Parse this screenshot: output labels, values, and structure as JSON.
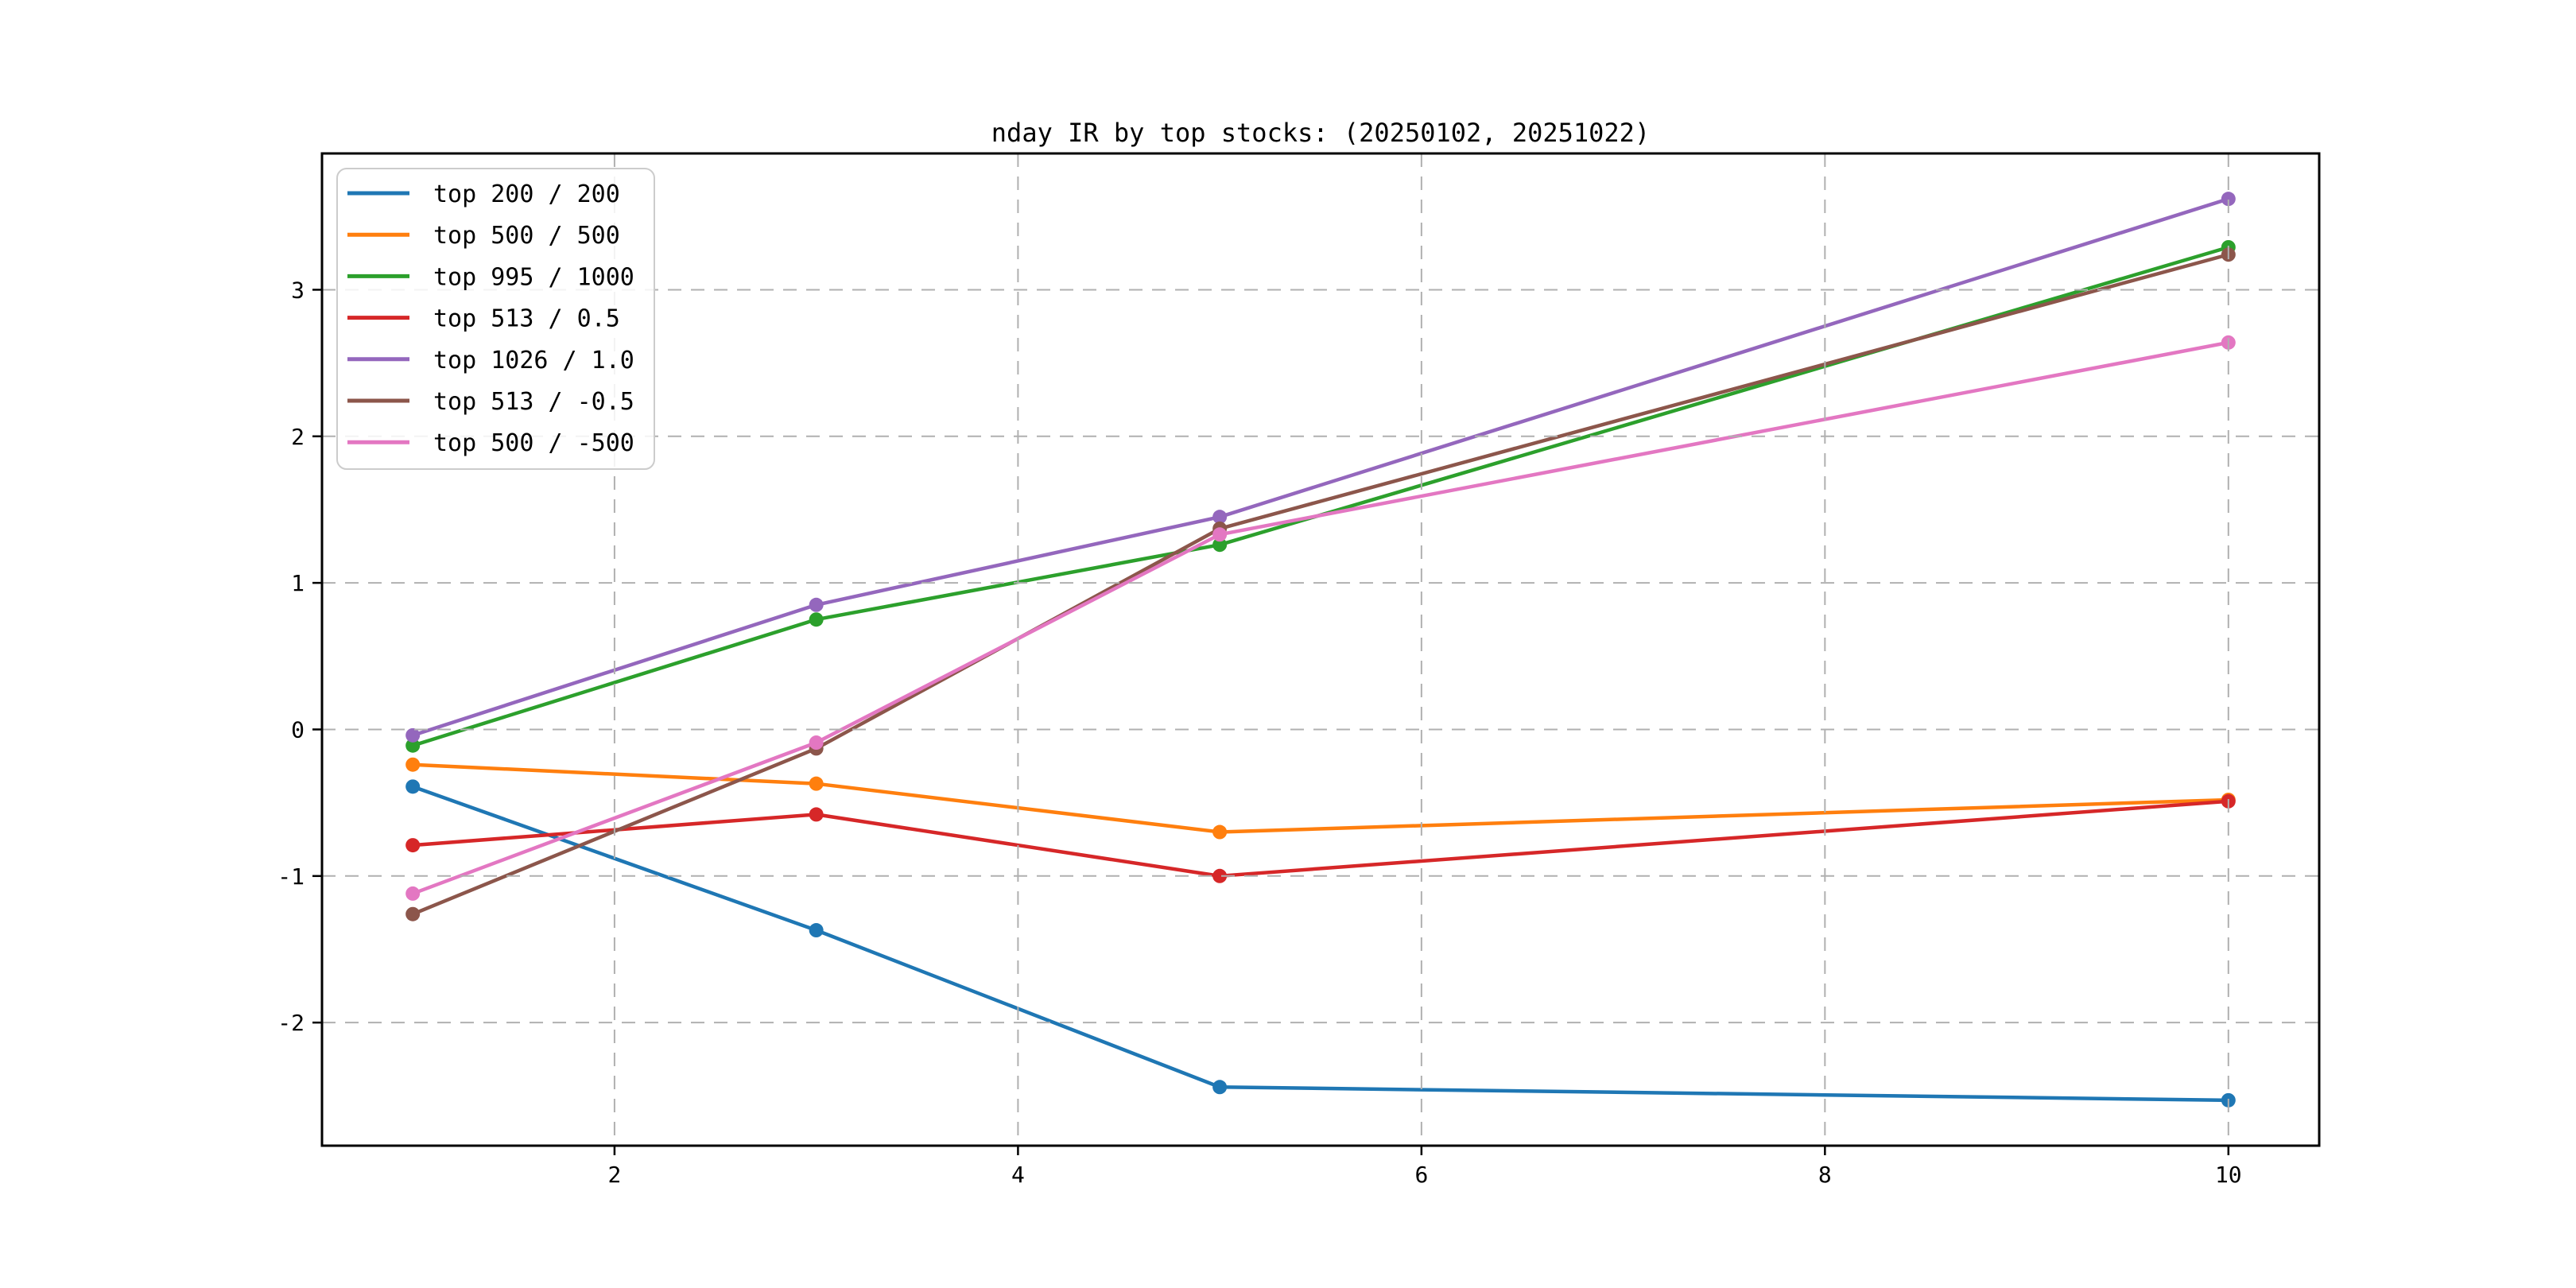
{
  "figure": {
    "background": "#ffffff"
  },
  "chart_data": {
    "type": "line",
    "title": "nday IR by top stocks: (20250102, 20251022)",
    "xlabel": "",
    "ylabel": "",
    "x": [
      1,
      3,
      5,
      10
    ],
    "series": [
      {
        "name": "top 200 / 200",
        "color": "#1f77b4",
        "values": [
          -0.39,
          -1.37,
          -2.44,
          -2.53
        ]
      },
      {
        "name": "top 500 / 500",
        "color": "#ff7f0e",
        "values": [
          -0.24,
          -0.37,
          -0.7,
          -0.48
        ]
      },
      {
        "name": "top 995 / 1000",
        "color": "#2ca02c",
        "values": [
          -0.11,
          0.75,
          1.26,
          3.29
        ]
      },
      {
        "name": "top 513 / 0.5",
        "color": "#d62728",
        "values": [
          -0.79,
          -0.58,
          -1.0,
          -0.49
        ]
      },
      {
        "name": "top 1026 / 1.0",
        "color": "#9467bd",
        "values": [
          -0.04,
          0.85,
          1.45,
          3.62
        ]
      },
      {
        "name": "top 513 / -0.5",
        "color": "#8c564b",
        "values": [
          -1.26,
          -0.13,
          1.37,
          3.24
        ]
      },
      {
        "name": "top 500 / -500",
        "color": "#e377c2",
        "values": [
          -1.12,
          -0.09,
          1.33,
          2.64
        ]
      }
    ],
    "x_ticks": [
      "2",
      "4",
      "6",
      "8",
      "10"
    ],
    "x_tick_values": [
      2,
      4,
      6,
      8,
      10
    ],
    "y_ticks": [
      "-2",
      "-1",
      "0",
      "1",
      "2",
      "3"
    ],
    "y_tick_values": [
      -2,
      -1,
      0,
      1,
      2,
      3
    ],
    "xlim": [
      0.55,
      10.45
    ],
    "ylim": [
      -2.84,
      3.93
    ],
    "grid": true,
    "grid_linestyle": "dashed",
    "legend_position": "upper-left",
    "marker": "circle"
  },
  "style": {
    "grid_color": "#b0b0b0",
    "spine_color": "#000000",
    "tick_color": "#000000",
    "text_color": "#000000",
    "legend_border_color": "#cccccc",
    "legend_background": "rgba(255,255,255,0.85)"
  }
}
